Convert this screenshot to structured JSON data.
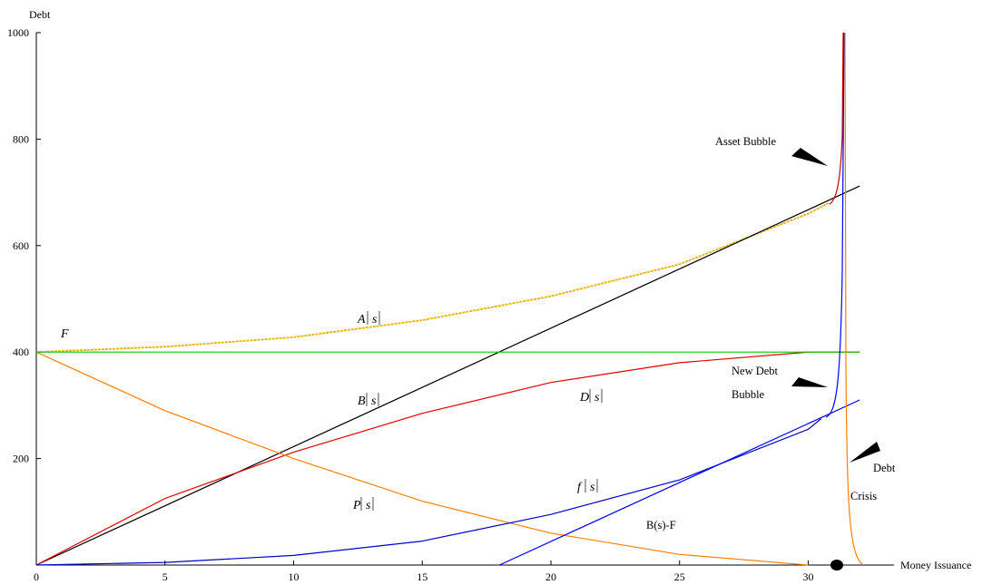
{
  "chart_data": {
    "type": "line",
    "title": "",
    "xlabel": "Money Issuance",
    "ylabel": "Debt",
    "xlim": [
      0,
      32.5
    ],
    "ylim": [
      0,
      1000
    ],
    "xticks": [
      0,
      5,
      10,
      15,
      20,
      25,
      30
    ],
    "yticks": [
      200,
      400,
      600,
      800,
      1000
    ],
    "grid": false,
    "series": [
      {
        "name": "A(s)",
        "color": "#e8b400",
        "points": [
          [
            0,
            400
          ],
          [
            5,
            410
          ],
          [
            10,
            428
          ],
          [
            15,
            460
          ],
          [
            20,
            505
          ],
          [
            25,
            565
          ],
          [
            30,
            660
          ],
          [
            30.8,
            680
          ]
        ]
      },
      {
        "name": "B(s)",
        "color": "#000000",
        "points": [
          [
            0,
            0
          ],
          [
            32,
            712
          ]
        ]
      },
      {
        "name": "D(s)",
        "color": "#e00000",
        "points": [
          [
            0,
            0
          ],
          [
            5,
            125
          ],
          [
            10,
            212
          ],
          [
            15,
            285
          ],
          [
            20,
            343
          ],
          [
            25,
            380
          ],
          [
            30,
            400
          ],
          [
            32,
            400
          ]
        ]
      },
      {
        "name": "P(s)",
        "color": "#ff8000",
        "points": [
          [
            0,
            400
          ],
          [
            5,
            290
          ],
          [
            10,
            200
          ],
          [
            15,
            120
          ],
          [
            20,
            60
          ],
          [
            25,
            20
          ],
          [
            30,
            0
          ]
        ]
      },
      {
        "name": "f(s)",
        "color": "#0000c8",
        "points": [
          [
            0,
            0
          ],
          [
            5,
            5
          ],
          [
            10,
            18
          ],
          [
            15,
            45
          ],
          [
            20,
            95
          ],
          [
            25,
            160
          ],
          [
            30,
            255
          ],
          [
            30.5,
            275
          ]
        ]
      },
      {
        "name": "B(s)-F",
        "color": "#0000ff",
        "points": [
          [
            18,
            0
          ],
          [
            32,
            310
          ]
        ]
      },
      {
        "name": "F",
        "color": "#00cc00",
        "points": [
          [
            0,
            400
          ],
          [
            32,
            400
          ]
        ]
      }
    ],
    "annotations": [
      {
        "text": "Asset Bubble",
        "x": 28.3,
        "y": 805
      },
      {
        "text": "New Debt",
        "x": 27.9,
        "y": 357
      },
      {
        "text": "Bubble",
        "x": 27.9,
        "y": 312
      },
      {
        "text": "Debt",
        "x": 31.7,
        "y": 170
      },
      {
        "text": "Crisis",
        "x": 31.5,
        "y": 130
      }
    ],
    "marker": {
      "x": 30.7,
      "y": 0
    }
  },
  "labels": {
    "A": "A",
    "B": "B",
    "D": "D",
    "P": "P",
    "f": "f",
    "s": "s",
    "F": "F",
    "BsF": "B(s)-F"
  }
}
